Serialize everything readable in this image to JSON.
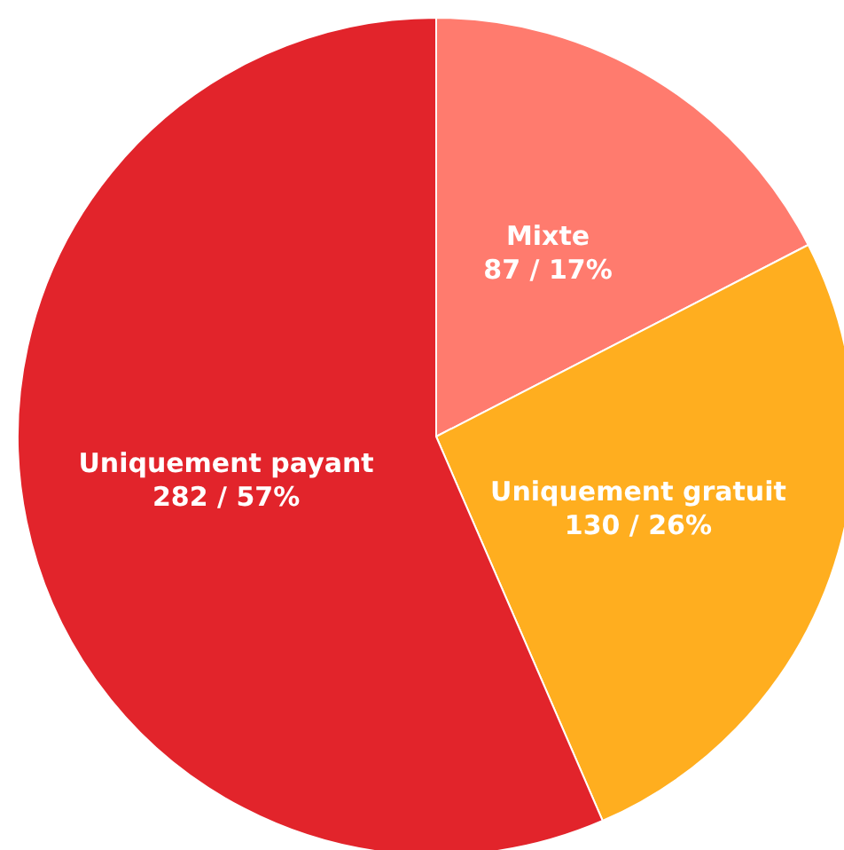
{
  "chart_data": {
    "type": "pie",
    "categories": [
      "Mixte",
      "Uniquement gratuit",
      "Uniquement payant"
    ],
    "values": [
      87,
      130,
      282
    ],
    "value_labels": [
      "87 / 17%",
      "130 / 26%",
      "282 / 57%"
    ],
    "colors": [
      "#ff7b6e",
      "#ffae1f",
      "#e2242b"
    ]
  }
}
